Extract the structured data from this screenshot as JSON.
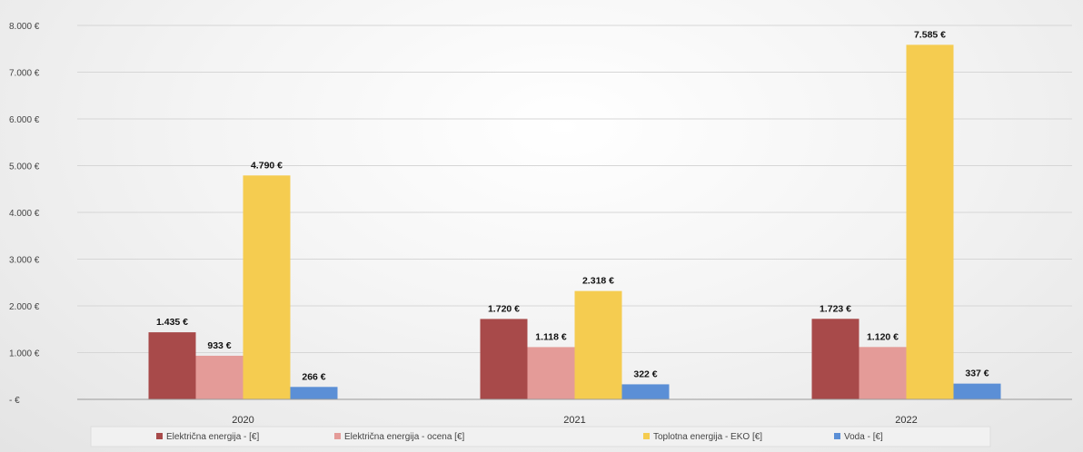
{
  "chart_data": {
    "type": "bar",
    "title": "",
    "xlabel": "",
    "ylabel": "",
    "categories": [
      "2020",
      "2021",
      "2022"
    ],
    "ylim": [
      0,
      8000
    ],
    "yticks": [
      0,
      1000,
      2000,
      3000,
      4000,
      5000,
      6000,
      7000,
      8000
    ],
    "ytick_labels": [
      " -  €",
      "1.000 €",
      "2.000 €",
      "3.000 €",
      "4.000 €",
      "5.000 €",
      "6.000 €",
      "7.000 €",
      "8.000 €"
    ],
    "grid": true,
    "legend_position": "bottom",
    "series": [
      {
        "name": "Električna energija - [€]",
        "color": "#a84a4a",
        "values": [
          1435,
          1720,
          1723
        ],
        "labels": [
          "1.435 €",
          "1.720 €",
          "1.723 €"
        ]
      },
      {
        "name": "Električna energija - ocena [€]",
        "color": "#e49b98",
        "values": [
          933,
          1118,
          1120
        ],
        "labels": [
          "933 €",
          "1.118 €",
          "1.120 €"
        ]
      },
      {
        "name": "Toplotna energija - EKO [€]",
        "color": "#f5cc50",
        "values": [
          4790,
          2318,
          7585
        ],
        "labels": [
          "4.790 €",
          "2.318 €",
          "7.585 €"
        ]
      },
      {
        "name": "Voda - [€]",
        "color": "#5b8fd6",
        "values": [
          266,
          322,
          337
        ],
        "labels": [
          "266 €",
          "322 €",
          "337 €"
        ]
      }
    ]
  }
}
